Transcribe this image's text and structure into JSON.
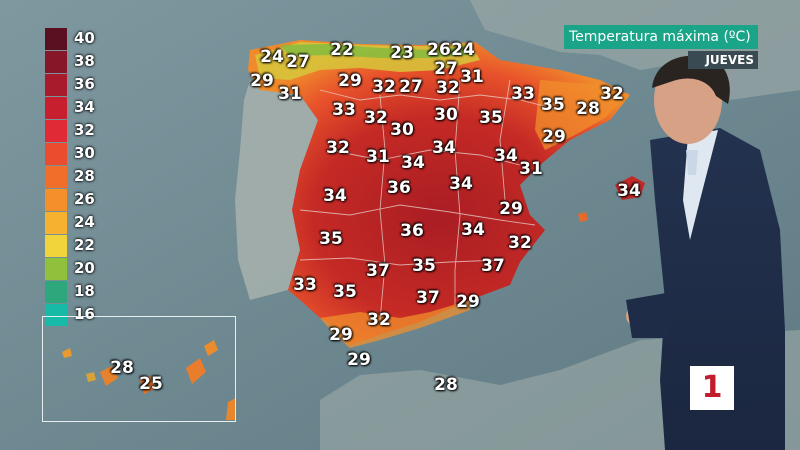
{
  "header": {
    "title": "Temperatura máxima (ºC)",
    "day": "JUEVES"
  },
  "legend": {
    "items": [
      {
        "label": "40",
        "color": "#5a1020"
      },
      {
        "label": "38",
        "color": "#861628"
      },
      {
        "label": "36",
        "color": "#a81b2d"
      },
      {
        "label": "34",
        "color": "#c81f2f"
      },
      {
        "label": "32",
        "color": "#e02a35"
      },
      {
        "label": "30",
        "color": "#ec4c2e"
      },
      {
        "label": "28",
        "color": "#f06e2a"
      },
      {
        "label": "26",
        "color": "#f4902a"
      },
      {
        "label": "24",
        "color": "#f6b131"
      },
      {
        "label": "22",
        "color": "#f1d43c"
      },
      {
        "label": "20",
        "color": "#8fc13a"
      },
      {
        "label": "18",
        "color": "#2fa77c"
      },
      {
        "label": "16",
        "color": "#17b9a7"
      }
    ]
  },
  "temperatures": [
    {
      "value": "24"
    },
    {
      "value": "27"
    },
    {
      "value": "22"
    },
    {
      "value": "23"
    },
    {
      "value": "26"
    },
    {
      "value": "24"
    },
    {
      "value": "29"
    },
    {
      "value": "31"
    },
    {
      "value": "29"
    },
    {
      "value": "32"
    },
    {
      "value": "27"
    },
    {
      "value": "27"
    },
    {
      "value": "32"
    },
    {
      "value": "31"
    },
    {
      "value": "33"
    },
    {
      "value": "35"
    },
    {
      "value": "28"
    },
    {
      "value": "32"
    },
    {
      "value": "33"
    },
    {
      "value": "32"
    },
    {
      "value": "30"
    },
    {
      "value": "30"
    },
    {
      "value": "35"
    },
    {
      "value": "29"
    },
    {
      "value": "32"
    },
    {
      "value": "31"
    },
    {
      "value": "34"
    },
    {
      "value": "34"
    },
    {
      "value": "34"
    },
    {
      "value": "31"
    },
    {
      "value": "34"
    },
    {
      "value": "36"
    },
    {
      "value": "34"
    },
    {
      "value": "34"
    },
    {
      "value": "29"
    },
    {
      "value": "35"
    },
    {
      "value": "36"
    },
    {
      "value": "34"
    },
    {
      "value": "32"
    },
    {
      "value": "33"
    },
    {
      "value": "37"
    },
    {
      "value": "35"
    },
    {
      "value": "37"
    },
    {
      "value": "35"
    },
    {
      "value": "37"
    },
    {
      "value": "29"
    },
    {
      "value": "32"
    },
    {
      "value": "29"
    },
    {
      "value": "29"
    },
    {
      "value": "28"
    },
    {
      "value": "28"
    },
    {
      "value": "25"
    }
  ],
  "branding": {
    "channel_logo": "1",
    "logo_color": "#c21d2e"
  },
  "colors": {
    "sea": "#6f8a93",
    "title_bar": "#1aa589"
  }
}
